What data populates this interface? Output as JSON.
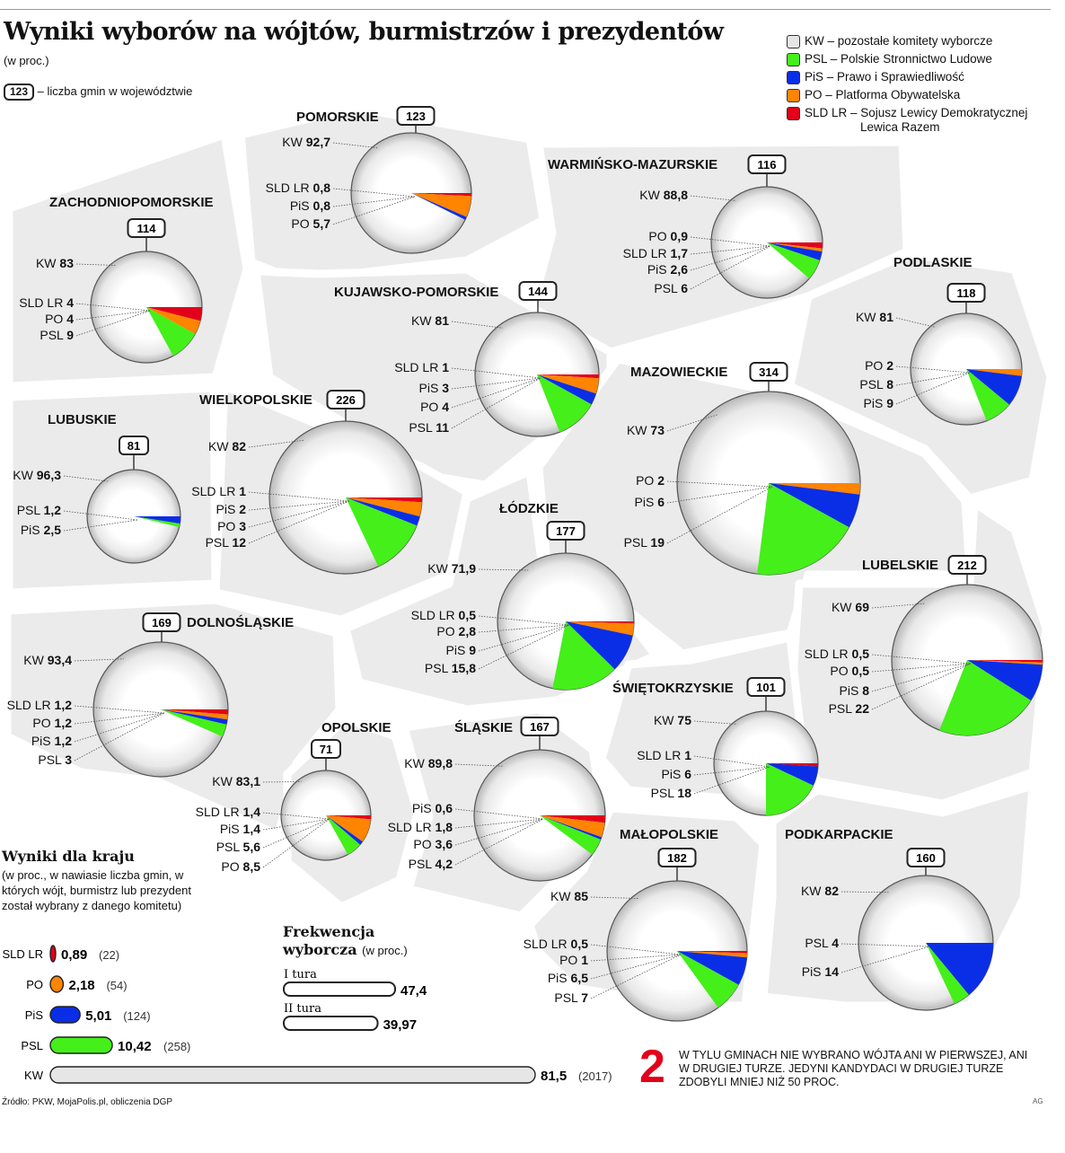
{
  "header": {
    "title": "Wyniki wyborów na wójtów, burmistrzów i prezydentów",
    "subtitle": "(w proc.)",
    "gmin_badge": "123",
    "gmin_key": "– liczba gmin w województwie"
  },
  "legend": [
    {
      "label": "KW – pozostałe komitety wyborcze",
      "color": "#e6e6e6"
    },
    {
      "label": "PSL – Polskie Stronnictwo Ludowe",
      "color": "#44ef1a"
    },
    {
      "label": "PiS – Prawo i Sprawiedliwość",
      "color": "#0a2ee6"
    },
    {
      "label": "PO – Platforma Obywatelska",
      "color": "#ff8400"
    },
    {
      "label": "SLD LR – Sojusz Lewicy Demokratycznej",
      "color": "#e3001b",
      "continuation": "Lewica Razem"
    }
  ],
  "chart_data": [
    {
      "type": "pie",
      "name": "POMORSKIE",
      "gminy": "123",
      "slices": [
        {
          "party": "KW",
          "value": "92,7"
        },
        {
          "party": "SLD LR",
          "value": "0,8"
        },
        {
          "party": "PiS",
          "value": "0,8"
        },
        {
          "party": "PO",
          "value": "5,7"
        }
      ]
    },
    {
      "type": "pie",
      "name": "WARMIŃSKO-MAZURSKIE",
      "gminy": "116",
      "slices": [
        {
          "party": "KW",
          "value": "88,8"
        },
        {
          "party": "PO",
          "value": "0,9"
        },
        {
          "party": "SLD LR",
          "value": "1,7"
        },
        {
          "party": "PiS",
          "value": "2,6"
        },
        {
          "party": "PSL",
          "value": "6"
        }
      ]
    },
    {
      "type": "pie",
      "name": "ZACHODNIOPOMORSKIE",
      "gminy": "114",
      "slices": [
        {
          "party": "KW",
          "value": "83"
        },
        {
          "party": "SLD LR",
          "value": "4"
        },
        {
          "party": "PO",
          "value": "4"
        },
        {
          "party": "PSL",
          "value": "9"
        }
      ]
    },
    {
      "type": "pie",
      "name": "KUJAWSKO-POMORSKIE",
      "gminy": "144",
      "slices": [
        {
          "party": "KW",
          "value": "81"
        },
        {
          "party": "SLD LR",
          "value": "1"
        },
        {
          "party": "PiS",
          "value": "3"
        },
        {
          "party": "PO",
          "value": "4"
        },
        {
          "party": "PSL",
          "value": "11"
        }
      ]
    },
    {
      "type": "pie",
      "name": "PODLASKIE",
      "gminy": "118",
      "slices": [
        {
          "party": "KW",
          "value": "81"
        },
        {
          "party": "PO",
          "value": "2"
        },
        {
          "party": "PSL",
          "value": "8"
        },
        {
          "party": "PiS",
          "value": "9"
        }
      ]
    },
    {
      "type": "pie",
      "name": "LUBUSKIE",
      "gminy": "81",
      "slices": [
        {
          "party": "KW",
          "value": "96,3"
        },
        {
          "party": "PSL",
          "value": "1,2"
        },
        {
          "party": "PiS",
          "value": "2,5"
        }
      ]
    },
    {
      "type": "pie",
      "name": "WIELKOPOLSKIE",
      "gminy": "226",
      "slices": [
        {
          "party": "KW",
          "value": "82"
        },
        {
          "party": "SLD LR",
          "value": "1"
        },
        {
          "party": "PiS",
          "value": "2"
        },
        {
          "party": "PO",
          "value": "3"
        },
        {
          "party": "PSL",
          "value": "12"
        }
      ]
    },
    {
      "type": "pie",
      "name": "MAZOWIECKIE",
      "gminy": "314",
      "slices": [
        {
          "party": "KW",
          "value": "73"
        },
        {
          "party": "PO",
          "value": "2"
        },
        {
          "party": "PiS",
          "value": "6"
        },
        {
          "party": "PSL",
          "value": "19"
        }
      ]
    },
    {
      "type": "pie",
      "name": "ŁÓDZKIE",
      "gminy": "177",
      "slices": [
        {
          "party": "KW",
          "value": "71,9"
        },
        {
          "party": "SLD LR",
          "value": "0,5"
        },
        {
          "party": "PO",
          "value": "2,8"
        },
        {
          "party": "PiS",
          "value": "9"
        },
        {
          "party": "PSL",
          "value": "15,8"
        }
      ]
    },
    {
      "type": "pie",
      "name": "LUBELSKIE",
      "gminy": "212",
      "slices": [
        {
          "party": "KW",
          "value": "69"
        },
        {
          "party": "SLD LR",
          "value": "0,5"
        },
        {
          "party": "PO",
          "value": "0,5"
        },
        {
          "party": "PiS",
          "value": "8"
        },
        {
          "party": "PSL",
          "value": "22"
        }
      ]
    },
    {
      "type": "pie",
      "name": "DOLNOŚLĄSKIE",
      "gminy": "169",
      "slices": [
        {
          "party": "KW",
          "value": "93,4"
        },
        {
          "party": "SLD LR",
          "value": "1,2"
        },
        {
          "party": "PO",
          "value": "1,2"
        },
        {
          "party": "PiS",
          "value": "1,2"
        },
        {
          "party": "PSL",
          "value": "3"
        }
      ]
    },
    {
      "type": "pie",
      "name": "OPOLSKIE",
      "gminy": "71",
      "slices": [
        {
          "party": "KW",
          "value": "83,1"
        },
        {
          "party": "SLD LR",
          "value": "1,4"
        },
        {
          "party": "PiS",
          "value": "1,4"
        },
        {
          "party": "PSL",
          "value": "5,6"
        },
        {
          "party": "PO",
          "value": "8,5"
        }
      ]
    },
    {
      "type": "pie",
      "name": "ŚLĄSKIE",
      "gminy": "167",
      "slices": [
        {
          "party": "KW",
          "value": "89,8"
        },
        {
          "party": "PiS",
          "value": "0,6"
        },
        {
          "party": "SLD LR",
          "value": "1,8"
        },
        {
          "party": "PO",
          "value": "3,6"
        },
        {
          "party": "PSL",
          "value": "4,2"
        }
      ]
    },
    {
      "type": "pie",
      "name": "ŚWIĘTOKRZYSKIE",
      "gminy": "101",
      "slices": [
        {
          "party": "KW",
          "value": "75"
        },
        {
          "party": "SLD LR",
          "value": "1"
        },
        {
          "party": "PiS",
          "value": "6"
        },
        {
          "party": "PSL",
          "value": "18"
        }
      ]
    },
    {
      "type": "pie",
      "name": "MAŁOPOLSKIE",
      "gminy": "182",
      "slices": [
        {
          "party": "KW",
          "value": "85"
        },
        {
          "party": "SLD LR",
          "value": "0,5"
        },
        {
          "party": "PO",
          "value": "1"
        },
        {
          "party": "PiS",
          "value": "6,5"
        },
        {
          "party": "PSL",
          "value": "7"
        }
      ]
    },
    {
      "type": "pie",
      "name": "PODKARPACKIE",
      "gminy": "160",
      "slices": [
        {
          "party": "KW",
          "value": "82"
        },
        {
          "party": "PSL",
          "value": "4"
        },
        {
          "party": "PiS",
          "value": "14"
        }
      ]
    },
    {
      "type": "bar",
      "name": "Wyniki dla kraju",
      "categories": [
        "SLD LR",
        "PO",
        "PiS",
        "PSL",
        "KW"
      ],
      "values": [
        "0,89",
        "2,18",
        "5,01",
        "10,42",
        "81,5"
      ],
      "counts": [
        "(22)",
        "(54)",
        "(124)",
        "(258)",
        "(2017)"
      ],
      "xlim": [
        0,
        81.5
      ]
    },
    {
      "type": "bar",
      "name": "Frekwencja wyborcza",
      "categories": [
        "I tura",
        "II tura"
      ],
      "values": [
        "47,4",
        "39,97"
      ],
      "xlim": [
        0,
        47.4
      ]
    }
  ],
  "national": {
    "heading": "Wyniki dla kraju",
    "subheading": "(w proc., w nawiasie liczba gmin, w których wójt, burmistrz lub prezydent został wybrany z danego komitetu)"
  },
  "turnout": {
    "heading": "Frekwencja",
    "heading2": "wyborcza",
    "unit": "(w proc.)"
  },
  "note": {
    "number": "2",
    "text": "W tylu gminach nie wybrano wójta ani w pierwszej, ani w drugiej turze. Jedyni kandydaci w drugiej turze zdobyli mniej niż 50 proc."
  },
  "footer": {
    "source": "Źródło: PKW, MojaPolis.pl, obliczenia DGP",
    "credit": "AG"
  }
}
